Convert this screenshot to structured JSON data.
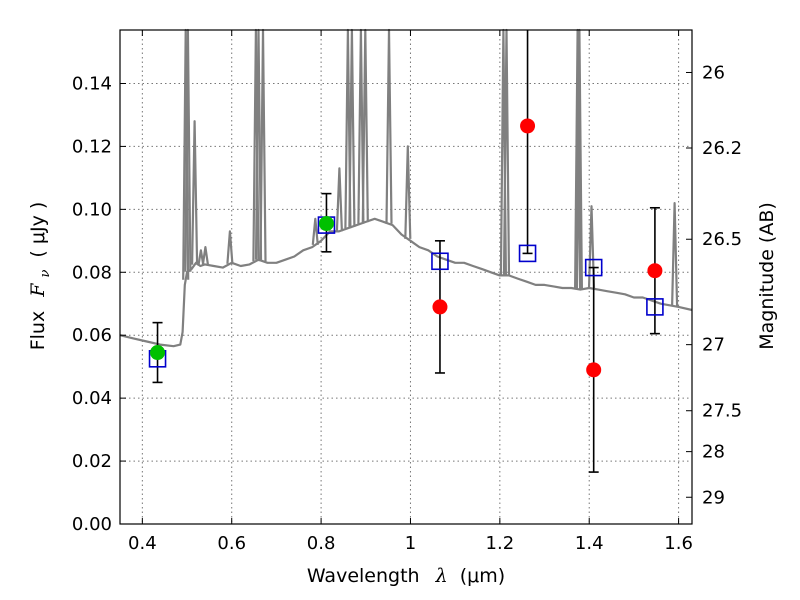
{
  "chart_data": {
    "type": "scatter",
    "xlabel_text": "Wavelength",
    "xlabel_symbol": "λ",
    "xlabel_unit": "(μm)",
    "ylabel_text": "Flux",
    "ylabel_symbol_main": "F",
    "ylabel_symbol_sub": "ν",
    "ylabel_unit": "( μJy )",
    "y2label": "Magnitude (AB)",
    "xlim": [
      0.35,
      1.63
    ],
    "ylim": [
      0.0,
      0.157
    ],
    "grid": true,
    "x_ticks": [
      0.4,
      0.6,
      0.8,
      1.0,
      1.2,
      1.4,
      1.6
    ],
    "x_tick_labels": [
      "0.4",
      "0.6",
      "0.8",
      "1",
      "1.2",
      "1.4",
      "1.6"
    ],
    "y_ticks": [
      0.0,
      0.02,
      0.04,
      0.06,
      0.08,
      0.1,
      0.12,
      0.14
    ],
    "y_tick_labels": [
      "0.00",
      "0.02",
      "0.04",
      "0.06",
      "0.08",
      "0.10",
      "0.12",
      "0.14"
    ],
    "y2_ticks": [
      "26",
      "26.2",
      "26.5",
      "27",
      "27.5",
      "28",
      "29"
    ],
    "colors": {
      "model": "#808080",
      "green": "#00c000",
      "red": "#ff0000",
      "square": "#0000cc",
      "errorbar": "#000000"
    },
    "model_spectrum": {
      "x": [
        0.35,
        0.38,
        0.41,
        0.44,
        0.47,
        0.485,
        0.49,
        0.495,
        0.5,
        0.51,
        0.52,
        0.53,
        0.54,
        0.56,
        0.58,
        0.6,
        0.62,
        0.64,
        0.66,
        0.68,
        0.7,
        0.72,
        0.74,
        0.76,
        0.78,
        0.8,
        0.82,
        0.84,
        0.86,
        0.88,
        0.9,
        0.92,
        0.94,
        0.96,
        0.98,
        1.0,
        1.02,
        1.04,
        1.06,
        1.08,
        1.1,
        1.12,
        1.14,
        1.16,
        1.18,
        1.2,
        1.22,
        1.24,
        1.26,
        1.28,
        1.3,
        1.32,
        1.34,
        1.36,
        1.38,
        1.4,
        1.42,
        1.44,
        1.46,
        1.48,
        1.5,
        1.52,
        1.54,
        1.56,
        1.58,
        1.6,
        1.63
      ],
      "y": [
        0.06,
        0.059,
        0.058,
        0.057,
        0.0565,
        0.057,
        0.061,
        0.076,
        0.08,
        0.081,
        0.083,
        0.082,
        0.0825,
        0.082,
        0.0815,
        0.083,
        0.082,
        0.0825,
        0.084,
        0.083,
        0.083,
        0.084,
        0.085,
        0.087,
        0.088,
        0.09,
        0.093,
        0.093,
        0.094,
        0.095,
        0.096,
        0.097,
        0.096,
        0.095,
        0.092,
        0.09,
        0.088,
        0.087,
        0.085,
        0.084,
        0.083,
        0.083,
        0.082,
        0.081,
        0.08,
        0.079,
        0.079,
        0.078,
        0.077,
        0.076,
        0.076,
        0.0755,
        0.075,
        0.075,
        0.0745,
        0.075,
        0.0745,
        0.074,
        0.0735,
        0.073,
        0.072,
        0.072,
        0.071,
        0.07,
        0.0695,
        0.069,
        0.068
      ]
    },
    "emission_lines": [
      {
        "x": 0.497,
        "peak": 0.16
      },
      {
        "x": 0.502,
        "peak": 0.16
      },
      {
        "x": 0.517,
        "peak": 0.128
      },
      {
        "x": 0.531,
        "peak": 0.087
      },
      {
        "x": 0.541,
        "peak": 0.088
      },
      {
        "x": 0.596,
        "peak": 0.093
      },
      {
        "x": 0.654,
        "peak": 0.16
      },
      {
        "x": 0.66,
        "peak": 0.16
      },
      {
        "x": 0.67,
        "peak": 0.16
      },
      {
        "x": 0.787,
        "peak": 0.097
      },
      {
        "x": 0.841,
        "peak": 0.113
      },
      {
        "x": 0.86,
        "peak": 0.16
      },
      {
        "x": 0.869,
        "peak": 0.16
      },
      {
        "x": 0.889,
        "peak": 0.16
      },
      {
        "x": 0.899,
        "peak": 0.16
      },
      {
        "x": 0.952,
        "peak": 0.16
      },
      {
        "x": 0.994,
        "peak": 0.12
      },
      {
        "x": 1.208,
        "peak": 0.16
      },
      {
        "x": 1.215,
        "peak": 0.16
      },
      {
        "x": 1.374,
        "peak": 0.16
      },
      {
        "x": 1.378,
        "peak": 0.16
      },
      {
        "x": 1.405,
        "peak": 0.101
      },
      {
        "x": 1.591,
        "peak": 0.102
      }
    ],
    "green_points": [
      {
        "x": 0.434,
        "y": 0.0545
      },
      {
        "x": 0.812,
        "y": 0.0955
      }
    ],
    "red_points": [
      {
        "x": 1.066,
        "y": 0.069,
        "yerr_low": 0.048,
        "yerr_high": 0.09
      },
      {
        "x": 1.262,
        "y": 0.1265,
        "yerr_low": 0.086,
        "yerr_high": 0.157
      },
      {
        "x": 1.41,
        "y": 0.049,
        "yerr_low": 0.0165,
        "yerr_high": 0.0815
      },
      {
        "x": 1.547,
        "y": 0.0805,
        "yerr_low": 0.0605,
        "yerr_high": 0.1005
      }
    ],
    "green_errorbars": [
      {
        "x": 0.434,
        "yerr_low": 0.045,
        "yerr_high": 0.064
      },
      {
        "x": 0.812,
        "yerr_low": 0.0865,
        "yerr_high": 0.105
      }
    ],
    "model_squares": [
      {
        "x": 0.434,
        "y": 0.0525
      },
      {
        "x": 0.812,
        "y": 0.095
      },
      {
        "x": 1.066,
        "y": 0.0835
      },
      {
        "x": 1.262,
        "y": 0.086
      },
      {
        "x": 1.41,
        "y": 0.0815
      },
      {
        "x": 1.547,
        "y": 0.069
      }
    ],
    "y2_tick_positions": [
      0.1435,
      0.1195,
      0.0905,
      0.057,
      0.036,
      0.023,
      0.0085
    ]
  }
}
